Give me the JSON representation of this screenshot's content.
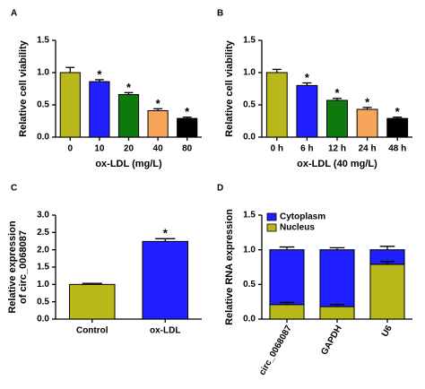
{
  "chart_data": [
    {
      "type": "bar",
      "label": "A",
      "categories": [
        "0",
        "10",
        "20",
        "40",
        "80"
      ],
      "values": [
        1.0,
        0.86,
        0.66,
        0.41,
        0.29
      ],
      "errors": [
        0.08,
        0.03,
        0.03,
        0.03,
        0.02
      ],
      "significance": [
        null,
        "*",
        "*",
        "*",
        "*"
      ],
      "colors": [
        "#b8b81a",
        "#1f1fff",
        "#0e7a0e",
        "#f7a55a",
        "#000000"
      ],
      "ylabel": [
        "Relative cell viability"
      ],
      "xlabel": "ox-LDL (mg/L)",
      "ylim": [
        0,
        1.5
      ],
      "yticks": [
        {
          "value": 0,
          "label": "0.0"
        },
        {
          "value": 0.5,
          "label": "0.5"
        },
        {
          "value": 1.0,
          "label": "1.0"
        },
        {
          "value": 1.5,
          "label": "1.5"
        }
      ]
    },
    {
      "type": "bar",
      "label": "B",
      "categories": [
        "0 h",
        "6 h",
        "12 h",
        "24 h",
        "48 h"
      ],
      "values": [
        1.0,
        0.8,
        0.57,
        0.43,
        0.29
      ],
      "errors": [
        0.05,
        0.04,
        0.03,
        0.03,
        0.02
      ],
      "significance": [
        null,
        "*",
        "*",
        "*",
        "*"
      ],
      "colors": [
        "#b8b81a",
        "#1f1fff",
        "#0e7a0e",
        "#f7a55a",
        "#000000"
      ],
      "ylabel": [
        "Relative cell viability"
      ],
      "xlabel": "ox-LDL (40 mg/L)",
      "ylim": [
        0,
        1.5
      ],
      "yticks": [
        {
          "value": 0,
          "label": "0.0"
        },
        {
          "value": 0.5,
          "label": "0.5"
        },
        {
          "value": 1.0,
          "label": "1.0"
        },
        {
          "value": 1.5,
          "label": "1.5"
        }
      ]
    },
    {
      "type": "bar",
      "label": "C",
      "categories": [
        "Control",
        "ox-LDL"
      ],
      "values": [
        1.0,
        2.24
      ],
      "errors": [
        0.03,
        0.08
      ],
      "significance": [
        null,
        "*"
      ],
      "colors": [
        "#b8b81a",
        "#1f1fff"
      ],
      "ylabel": [
        "Relative expression",
        "of circ_0068087"
      ],
      "ylim": [
        0,
        3.0
      ],
      "yticks": [
        {
          "value": 0,
          "label": "0.0"
        },
        {
          "value": 0.5,
          "label": "0.5"
        },
        {
          "value": 1.0,
          "label": "1.0"
        },
        {
          "value": 1.5,
          "label": "1.5"
        },
        {
          "value": 2.0,
          "label": "2.0"
        },
        {
          "value": 2.5,
          "label": "2.5"
        },
        {
          "value": 3.0,
          "label": "3.0"
        }
      ]
    },
    {
      "type": "stacked_bar",
      "label": "D",
      "categories": [
        "circ_0068087",
        "GAPDH",
        "U6"
      ],
      "xtick_rotation": -60,
      "series": [
        {
          "name": "Nucleus",
          "color": "#b8b81a",
          "values": [
            0.21,
            0.18,
            0.79
          ],
          "errors": [
            0.03,
            0.03,
            0.04
          ]
        },
        {
          "name": "Cytoplasm",
          "color": "#1f1fff",
          "values": [
            0.79,
            0.82,
            0.21
          ],
          "errors": [
            0.04,
            0.03,
            0.05
          ]
        }
      ],
      "ylabel": [
        "Relative RNA expression"
      ],
      "ylim": [
        0,
        1.5
      ],
      "yticks": [
        {
          "value": 0,
          "label": "0.0"
        },
        {
          "value": 0.5,
          "label": "0.5"
        },
        {
          "value": 1.0,
          "label": "1.0"
        },
        {
          "value": 1.5,
          "label": "1.5"
        }
      ]
    }
  ]
}
